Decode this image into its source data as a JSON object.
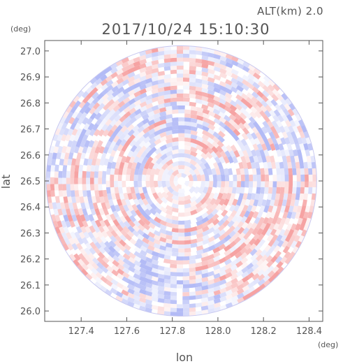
{
  "header": {
    "altitude_label": "ALT(km) 2.0",
    "timestamp": "2017/10/24 15:10:30"
  },
  "chart_data": {
    "type": "heatmap",
    "description_kind": "polar-radar-ppi",
    "title": "2017/10/24 15:10:30",
    "xlabel": "lon",
    "ylabel": "lat",
    "x_unit": "(deg)",
    "y_unit": "(deg)",
    "xlim": [
      127.24,
      128.46
    ],
    "ylim": [
      25.96,
      27.04
    ],
    "x_ticks": [
      "127.4",
      "127.6",
      "127.8",
      "128.0",
      "128.2",
      "128.4"
    ],
    "y_ticks": [
      "26.0",
      "26.1",
      "26.2",
      "26.3",
      "26.4",
      "26.5",
      "26.6",
      "26.7",
      "26.8",
      "26.9",
      "27.0"
    ],
    "center": {
      "lon": 127.84,
      "lat": 26.5
    },
    "radius_deg_lat": 0.52,
    "colors": {
      "positive": "#f4a0a0",
      "negative": "#a8b0f4",
      "neutral": "#ffffff",
      "axis": "#555555",
      "text": "#555555"
    }
  }
}
